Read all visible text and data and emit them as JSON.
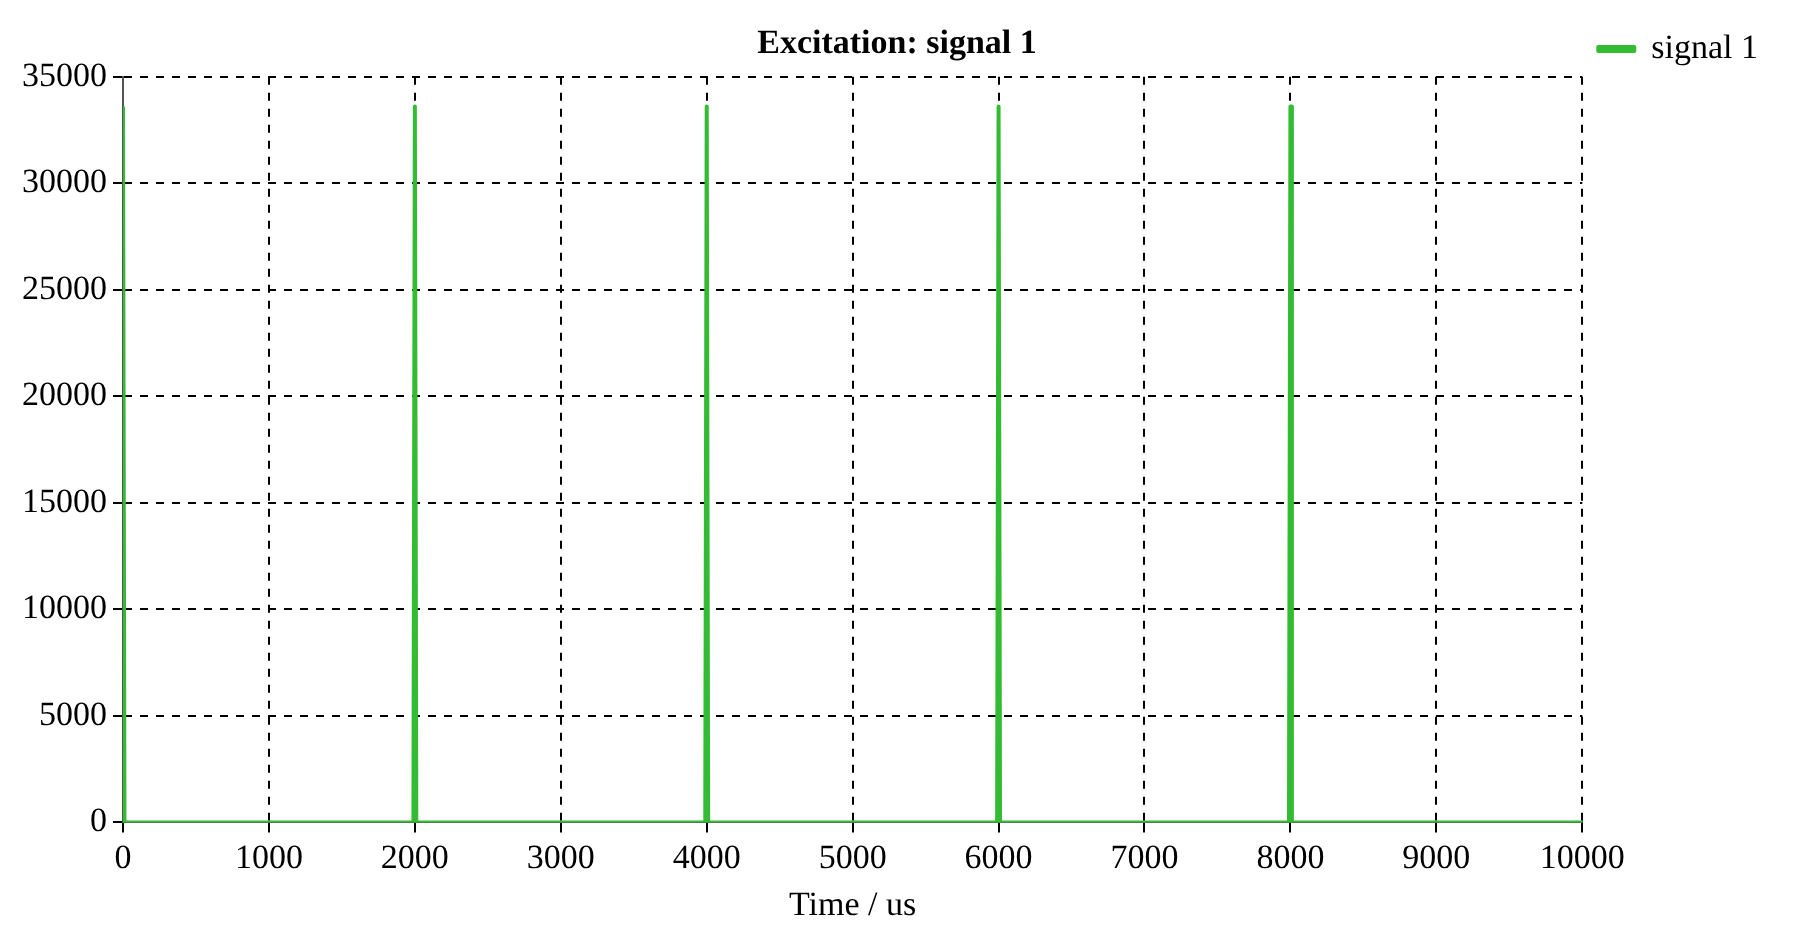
{
  "chart_data": {
    "type": "line",
    "title": "Excitation: signal 1",
    "xlabel": "Time / us",
    "series": [
      {
        "name": "signal 1",
        "color": "#33bb33",
        "x": [
          0,
          10,
          1990,
          2000,
          2010,
          3990,
          4000,
          4010,
          5990,
          6000,
          6010,
          7990,
          8000,
          8010,
          10000
        ],
        "values": [
          33600,
          0,
          0,
          33600,
          0,
          0,
          33600,
          0,
          0,
          33600,
          0,
          0,
          33600,
          0,
          0
        ]
      }
    ],
    "xlim": [
      0,
      10000
    ],
    "xticks": [
      0,
      1000,
      2000,
      3000,
      4000,
      5000,
      6000,
      7000,
      8000,
      9000,
      10000
    ],
    "ylim": [
      0,
      35000
    ],
    "yticks": [
      0,
      5000,
      10000,
      15000,
      20000,
      25000,
      30000,
      35000
    ],
    "grid": true,
    "legend": "top right",
    "marker": "none",
    "line_style": "solid"
  }
}
